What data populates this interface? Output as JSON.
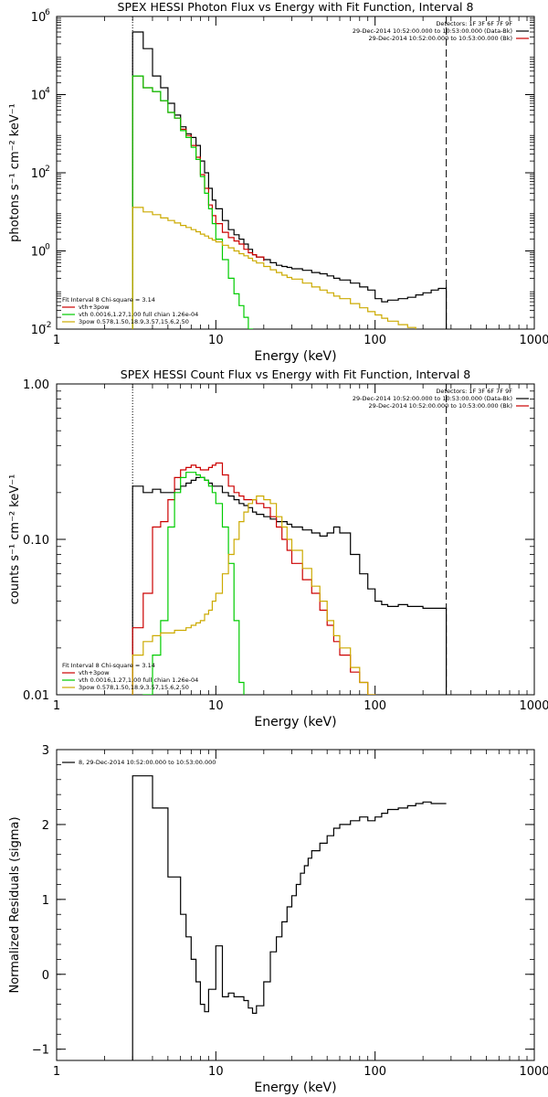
{
  "chart_data": [
    {
      "type": "line",
      "title": "SPEX HESSI Photon Flux vs Energy with Fit Function, Interval 8",
      "xlabel": "Energy (keV)",
      "ylabel": "photons s⁻¹ cm⁻² keV⁻¹",
      "xscale": "log",
      "yscale": "log",
      "xlim": [
        1,
        1000
      ],
      "ylim": [
        0.01,
        1000000
      ],
      "x_ticks": [
        {
          "value": 1,
          "label": "1"
        },
        {
          "value": 10,
          "label": "10"
        },
        {
          "value": 100,
          "label": "100"
        },
        {
          "value": 1000,
          "label": "1000"
        }
      ],
      "y_ticks": [
        {
          "value": 0.01,
          "base": "10",
          "exp": "-2"
        },
        {
          "value": 1,
          "base": "10",
          "exp": "0"
        },
        {
          "value": 100,
          "base": "10",
          "exp": "2"
        },
        {
          "value": 10000,
          "base": "10",
          "exp": "4"
        },
        {
          "value": 1000000,
          "base": "10",
          "exp": "6"
        }
      ],
      "vlines": [
        {
          "x": 3,
          "style": "dotted"
        },
        {
          "x": 280,
          "style": "dashed"
        }
      ],
      "header_lines": [
        "Detectors: 1F 3F 6F 7F 9F",
        "29-Dec-2014 10:52:00.000 to 10:53:00.000 (Data-Bk)",
        "29-Dec-2014 10:52:00.000 to 10:53:00.000 (Bk)"
      ],
      "header_colors": [
        "#000000",
        "#000000",
        "#cc0000"
      ],
      "legend_title": "Fit Interval 8   Chi-square = 3.14",
      "legend": [
        {
          "label": "vth+3pow",
          "color": "#cc0000"
        },
        {
          "label": "vth 0.0016,1.27,1.00  full chian 1.26e-04",
          "color": "#00cc00"
        },
        {
          "label": "3pow 0.578,1.50,18.9,3.57,15.6,2.50",
          "color": "#ccaa00"
        }
      ],
      "series": [
        {
          "color": "#000000",
          "x": [
            3,
            3.5,
            4,
            4.5,
            5,
            5.5,
            6,
            6.5,
            7,
            7.5,
            8,
            8.5,
            9,
            9.5,
            10,
            11,
            12,
            13,
            14,
            15,
            16,
            17,
            18,
            20,
            22,
            24,
            26,
            28,
            30,
            35,
            40,
            45,
            50,
            55,
            60,
            70,
            80,
            90,
            100,
            110,
            120,
            140,
            160,
            180,
            200,
            225,
            250,
            280
          ],
          "y": [
            400000,
            150000,
            30000,
            15000,
            6000,
            3000,
            1500,
            1000,
            800,
            500,
            200,
            100,
            40,
            20,
            12,
            6,
            3.5,
            2.6,
            2,
            1.5,
            1.1,
            0.8,
            0.7,
            0.6,
            0.5,
            0.43,
            0.4,
            0.38,
            0.35,
            0.32,
            0.28,
            0.26,
            0.23,
            0.2,
            0.18,
            0.15,
            0.12,
            0.1,
            0.06,
            0.05,
            0.055,
            0.06,
            0.065,
            0.075,
            0.085,
            0.1,
            0.11,
            0.12
          ]
        },
        {
          "color": "#cc0000",
          "x": [
            3,
            3.5,
            4,
            4.5,
            5,
            5.5,
            6,
            6.5,
            7,
            7.5,
            8,
            8.5,
            9,
            9.5,
            10,
            11,
            12,
            13,
            14,
            15,
            16,
            17,
            18,
            20
          ],
          "y": [
            30000,
            15000,
            12000,
            7000,
            3500,
            2500,
            1300,
            900,
            500,
            250,
            90,
            40,
            15,
            8,
            5,
            3,
            2.2,
            1.8,
            1.5,
            1.1,
            0.9,
            0.8,
            0.7,
            0.55
          ]
        },
        {
          "color": "#00cc00",
          "x": [
            3,
            3.5,
            4,
            4.5,
            5,
            5.5,
            6,
            6.5,
            7,
            7.5,
            8,
            8.5,
            9,
            9.5,
            10,
            11,
            12,
            13,
            14,
            15,
            16,
            17
          ],
          "y": [
            30000,
            15000,
            12000,
            7000,
            3500,
            2500,
            1200,
            800,
            450,
            220,
            80,
            30,
            12,
            5,
            2,
            0.6,
            0.2,
            0.08,
            0.04,
            0.02,
            0.01,
            0.007
          ]
        },
        {
          "color": "#ccaa00",
          "x": [
            3,
            3.5,
            4,
            4.5,
            5,
            5.5,
            6,
            6.5,
            7,
            7.5,
            8,
            8.5,
            9,
            9.5,
            10,
            11,
            12,
            13,
            14,
            15,
            16,
            17,
            18,
            20,
            22,
            24,
            26,
            28,
            30,
            35,
            40,
            45,
            50,
            55,
            60,
            70,
            80,
            90,
            100,
            110,
            120,
            140,
            160,
            180
          ],
          "y": [
            13,
            10,
            8.5,
            7,
            6,
            5.2,
            4.5,
            4,
            3.5,
            3.1,
            2.7,
            2.4,
            2.1,
            1.9,
            1.7,
            1.4,
            1.2,
            1,
            0.85,
            0.75,
            0.65,
            0.56,
            0.49,
            0.4,
            0.33,
            0.28,
            0.24,
            0.21,
            0.19,
            0.15,
            0.12,
            0.1,
            0.085,
            0.07,
            0.06,
            0.045,
            0.035,
            0.028,
            0.023,
            0.019,
            0.016,
            0.013,
            0.011,
            0.009
          ]
        }
      ]
    },
    {
      "type": "line",
      "title": "SPEX HESSI Count Flux vs Energy with Fit Function, Interval 8",
      "xlabel": "Energy (keV)",
      "ylabel": "counts s⁻¹ cm⁻² keV⁻¹",
      "xscale": "log",
      "yscale": "log",
      "xlim": [
        1,
        1000
      ],
      "ylim": [
        0.01,
        1.0
      ],
      "x_ticks": [
        {
          "value": 1,
          "label": "1"
        },
        {
          "value": 10,
          "label": "10"
        },
        {
          "value": 100,
          "label": "100"
        },
        {
          "value": 1000,
          "label": "1000"
        }
      ],
      "y_ticks": [
        {
          "value": 0.01,
          "label": "0.01"
        },
        {
          "value": 0.1,
          "label": "0.10"
        },
        {
          "value": 1,
          "label": "1.00"
        }
      ],
      "vlines": [
        {
          "x": 3,
          "style": "dotted"
        },
        {
          "x": 280,
          "style": "dashed"
        }
      ],
      "header_lines": [
        "Detectors: 1F 3F 6F 7F 9F",
        "29-Dec-2014 10:52:00.000 to 10:53:00.000 (Data-Bk)",
        "29-Dec-2014 10:52:00.000 to 10:53:00.000 (Bk)"
      ],
      "header_colors": [
        "#000000",
        "#000000",
        "#cc0000"
      ],
      "legend_title": "Fit Interval 8   Chi-square = 3.14",
      "legend": [
        {
          "label": "vth+3pow",
          "color": "#cc0000"
        },
        {
          "label": "vth 0.0016,1.27,1.00  full chian 1.26e-04",
          "color": "#00cc00"
        },
        {
          "label": "3pow 0.578,1.50,18.9,3.57,15.6,2.50",
          "color": "#ccaa00"
        }
      ],
      "series": [
        {
          "color": "#000000",
          "x": [
            3,
            3.5,
            4,
            4.5,
            5,
            5.5,
            6,
            6.5,
            7,
            7.5,
            8,
            8.5,
            9,
            9.5,
            10,
            11,
            12,
            13,
            14,
            15,
            16,
            17,
            18,
            20,
            22,
            24,
            26,
            28,
            30,
            35,
            40,
            45,
            50,
            55,
            60,
            70,
            80,
            90,
            100,
            110,
            120,
            140,
            160,
            180,
            200,
            225,
            250,
            280
          ],
          "y": [
            0.22,
            0.2,
            0.21,
            0.2,
            0.2,
            0.21,
            0.22,
            0.23,
            0.24,
            0.25,
            0.25,
            0.24,
            0.23,
            0.22,
            0.22,
            0.2,
            0.19,
            0.18,
            0.17,
            0.165,
            0.16,
            0.15,
            0.145,
            0.14,
            0.135,
            0.13,
            0.13,
            0.125,
            0.12,
            0.115,
            0.11,
            0.105,
            0.11,
            0.12,
            0.11,
            0.08,
            0.06,
            0.048,
            0.04,
            0.038,
            0.037,
            0.038,
            0.037,
            0.037,
            0.036,
            0.036,
            0.036,
            0.035
          ]
        },
        {
          "color": "#cc0000",
          "x": [
            3,
            3.5,
            4,
            4.5,
            5,
            5.5,
            6,
            6.5,
            7,
            7.5,
            8,
            8.5,
            9,
            9.5,
            10,
            11,
            12,
            13,
            14,
            15,
            16,
            17,
            18,
            20,
            22,
            24,
            26,
            28,
            30,
            35,
            40,
            45,
            50,
            55,
            60,
            70,
            80,
            90,
            100
          ],
          "y": [
            0.027,
            0.045,
            0.12,
            0.13,
            0.18,
            0.25,
            0.28,
            0.29,
            0.3,
            0.29,
            0.28,
            0.28,
            0.29,
            0.3,
            0.31,
            0.26,
            0.22,
            0.2,
            0.19,
            0.18,
            0.18,
            0.18,
            0.17,
            0.16,
            0.14,
            0.12,
            0.1,
            0.085,
            0.07,
            0.055,
            0.045,
            0.035,
            0.028,
            0.022,
            0.018,
            0.014,
            0.012,
            0.01,
            0.009
          ]
        },
        {
          "color": "#00cc00",
          "x": [
            3,
            3.5,
            4,
            4.5,
            5,
            5.5,
            6,
            6.5,
            7,
            7.5,
            8,
            8.5,
            9,
            9.5,
            10,
            11,
            12,
            13,
            14,
            15
          ],
          "y": [
            0.008,
            0.01,
            0.018,
            0.03,
            0.12,
            0.2,
            0.25,
            0.27,
            0.27,
            0.26,
            0.25,
            0.24,
            0.22,
            0.2,
            0.17,
            0.12,
            0.07,
            0.03,
            0.012,
            0.008
          ]
        },
        {
          "color": "#ccaa00",
          "x": [
            3,
            3.5,
            4,
            4.5,
            5,
            5.5,
            6,
            6.5,
            7,
            7.5,
            8,
            8.5,
            9,
            9.5,
            10,
            11,
            12,
            13,
            14,
            15,
            16,
            17,
            18,
            20,
            22,
            24,
            26,
            28,
            30,
            35,
            40,
            45,
            50,
            55,
            60,
            70,
            80,
            90,
            100
          ],
          "y": [
            0.018,
            0.022,
            0.024,
            0.025,
            0.025,
            0.026,
            0.026,
            0.027,
            0.028,
            0.029,
            0.03,
            0.033,
            0.035,
            0.04,
            0.045,
            0.06,
            0.08,
            0.1,
            0.13,
            0.15,
            0.17,
            0.18,
            0.19,
            0.18,
            0.17,
            0.14,
            0.12,
            0.1,
            0.085,
            0.065,
            0.05,
            0.04,
            0.03,
            0.024,
            0.02,
            0.015,
            0.012,
            0.01,
            0.009
          ]
        }
      ]
    },
    {
      "type": "line",
      "title": "",
      "xlabel": "Energy (keV)",
      "ylabel": "Normalized Residuals (sigma)",
      "xscale": "log",
      "yscale": "linear",
      "xlim": [
        1,
        1000
      ],
      "ylim": [
        -1.15,
        3
      ],
      "x_ticks": [
        {
          "value": 1,
          "label": "1"
        },
        {
          "value": 10,
          "label": "10"
        },
        {
          "value": 100,
          "label": "100"
        },
        {
          "value": 1000,
          "label": "1000"
        }
      ],
      "y_ticks": [
        {
          "value": -1,
          "label": "−1"
        },
        {
          "value": 0,
          "label": "0"
        },
        {
          "value": 1,
          "label": "1"
        },
        {
          "value": 2,
          "label": "2"
        },
        {
          "value": 3,
          "label": "3"
        }
      ],
      "vlines": [],
      "header_lines": [],
      "header_colors": [],
      "legend_title": "",
      "legend": [
        {
          "label": "8, 29-Dec-2014 10:52:00.000 to 10:53:00.000",
          "color": "#000000"
        }
      ],
      "series": [
        {
          "color": "#000000",
          "x": [
            3,
            3.5,
            4,
            4.5,
            5,
            5.5,
            6,
            6.5,
            7,
            7.5,
            8,
            8.5,
            9,
            9.5,
            10,
            11,
            12,
            13,
            14,
            15,
            16,
            17,
            18,
            20,
            22,
            24,
            26,
            28,
            30,
            32,
            34,
            36,
            38,
            40,
            45,
            50,
            55,
            60,
            70,
            80,
            90,
            100,
            110,
            120,
            140,
            160,
            180,
            200,
            225,
            250,
            280
          ],
          "y": [
            2.65,
            2.65,
            2.22,
            2.22,
            1.3,
            1.3,
            0.8,
            0.5,
            0.2,
            -0.1,
            -0.4,
            -0.5,
            -0.2,
            -0.2,
            0.38,
            -0.3,
            -0.25,
            -0.3,
            -0.3,
            -0.35,
            -0.45,
            -0.52,
            -0.42,
            -0.1,
            0.3,
            0.5,
            0.7,
            0.9,
            1.05,
            1.2,
            1.35,
            1.45,
            1.55,
            1.65,
            1.75,
            1.85,
            1.95,
            2.0,
            2.05,
            2.1,
            2.05,
            2.1,
            2.15,
            2.2,
            2.22,
            2.25,
            2.28,
            2.3,
            2.28,
            2.28,
            2.28
          ]
        }
      ]
    }
  ]
}
